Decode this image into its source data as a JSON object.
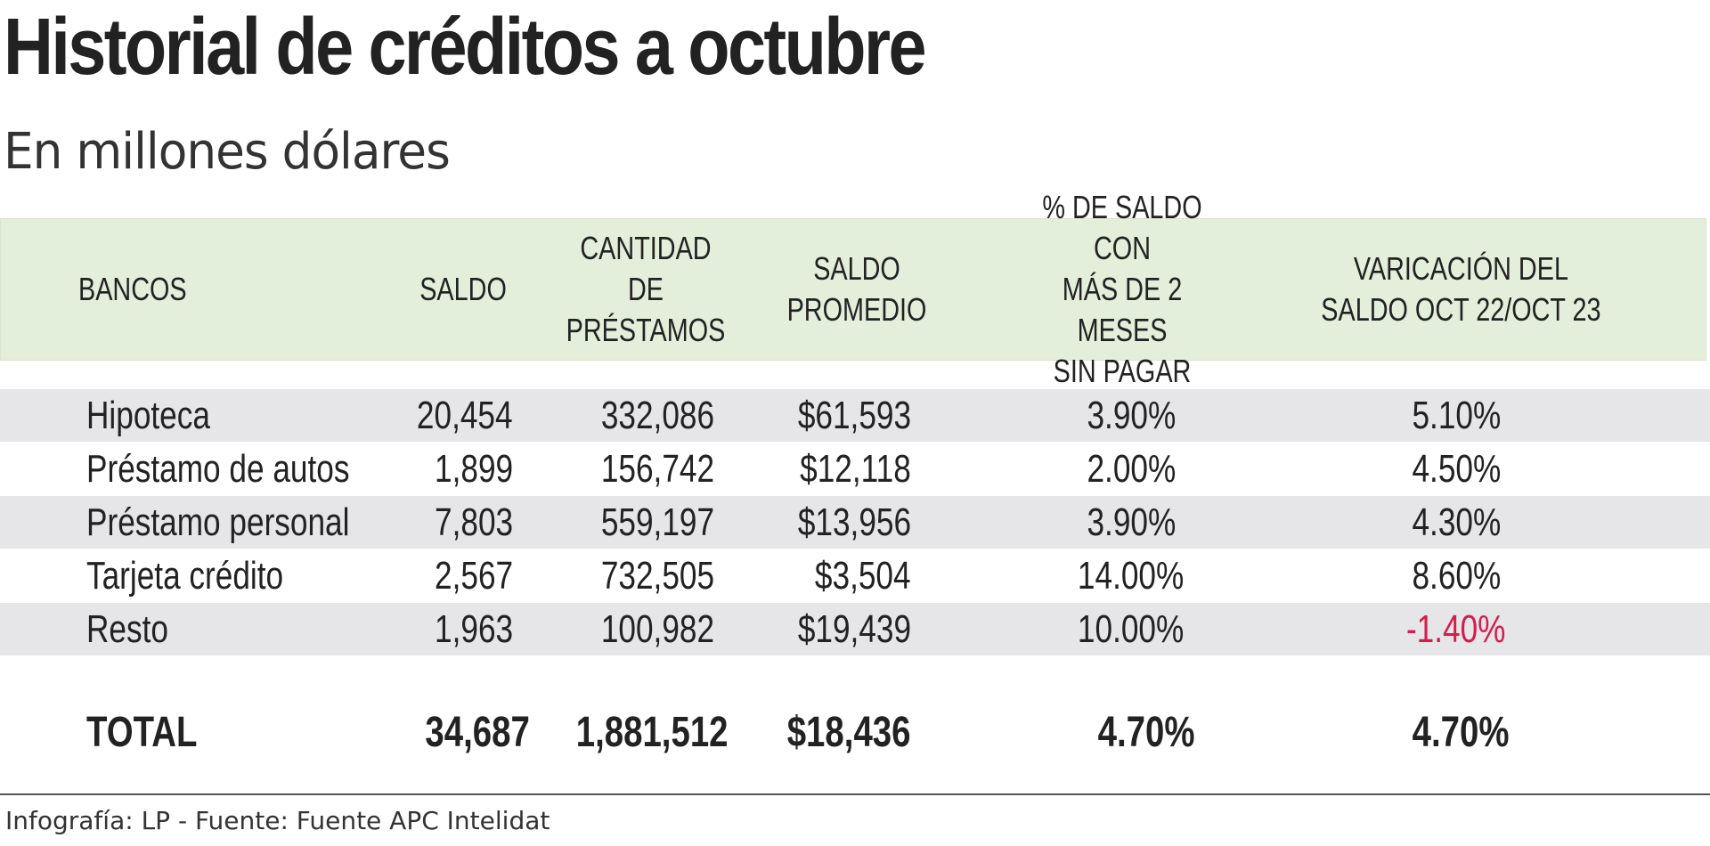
{
  "title": "Historial de créditos a octubre",
  "subtitle": "En millones dólares",
  "colors": {
    "header_bg": "#e3efda",
    "row_shade": "#e6e6e8",
    "negative": "#d81b4a"
  },
  "chart_data": {
    "type": "table",
    "title": "Historial de créditos a octubre",
    "subtitle": "En millones dólares",
    "columns": [
      "BANCOS",
      "SALDO",
      "CANTIDAD DE\nPRÉSTAMOS",
      "SALDO\nPROMEDIO",
      "% DE SALDO CON\nMÁS  DE 2 MESES\nSIN PAGAR",
      "VARICACIÓN DEL\nSALDO OCT 22/OCT 23"
    ],
    "rows": [
      [
        "Hipoteca",
        "20,454",
        "332,086",
        "$61,593",
        "3.90%",
        "5.10%"
      ],
      [
        "Préstamo de autos",
        "1,899",
        "156,742",
        "$12,118",
        "2.00%",
        "4.50%"
      ],
      [
        "Préstamo personal",
        "7,803",
        "559,197",
        "$13,956",
        "3.90%",
        "4.30%"
      ],
      [
        "Tarjeta crédito",
        "2,567",
        "732,505",
        "$3,504",
        "14.00%",
        "8.60%"
      ],
      [
        "Resto",
        "1,963",
        "100,982",
        "$19,439",
        "10.00%",
        "-1.40%"
      ]
    ],
    "total": [
      "TOTAL",
      "34,687",
      "1,881,512",
      "$18,436",
      "4.70%",
      "4.70%"
    ]
  },
  "credits": "Infografía: LP - Fuente: Fuente APC Intelidat"
}
